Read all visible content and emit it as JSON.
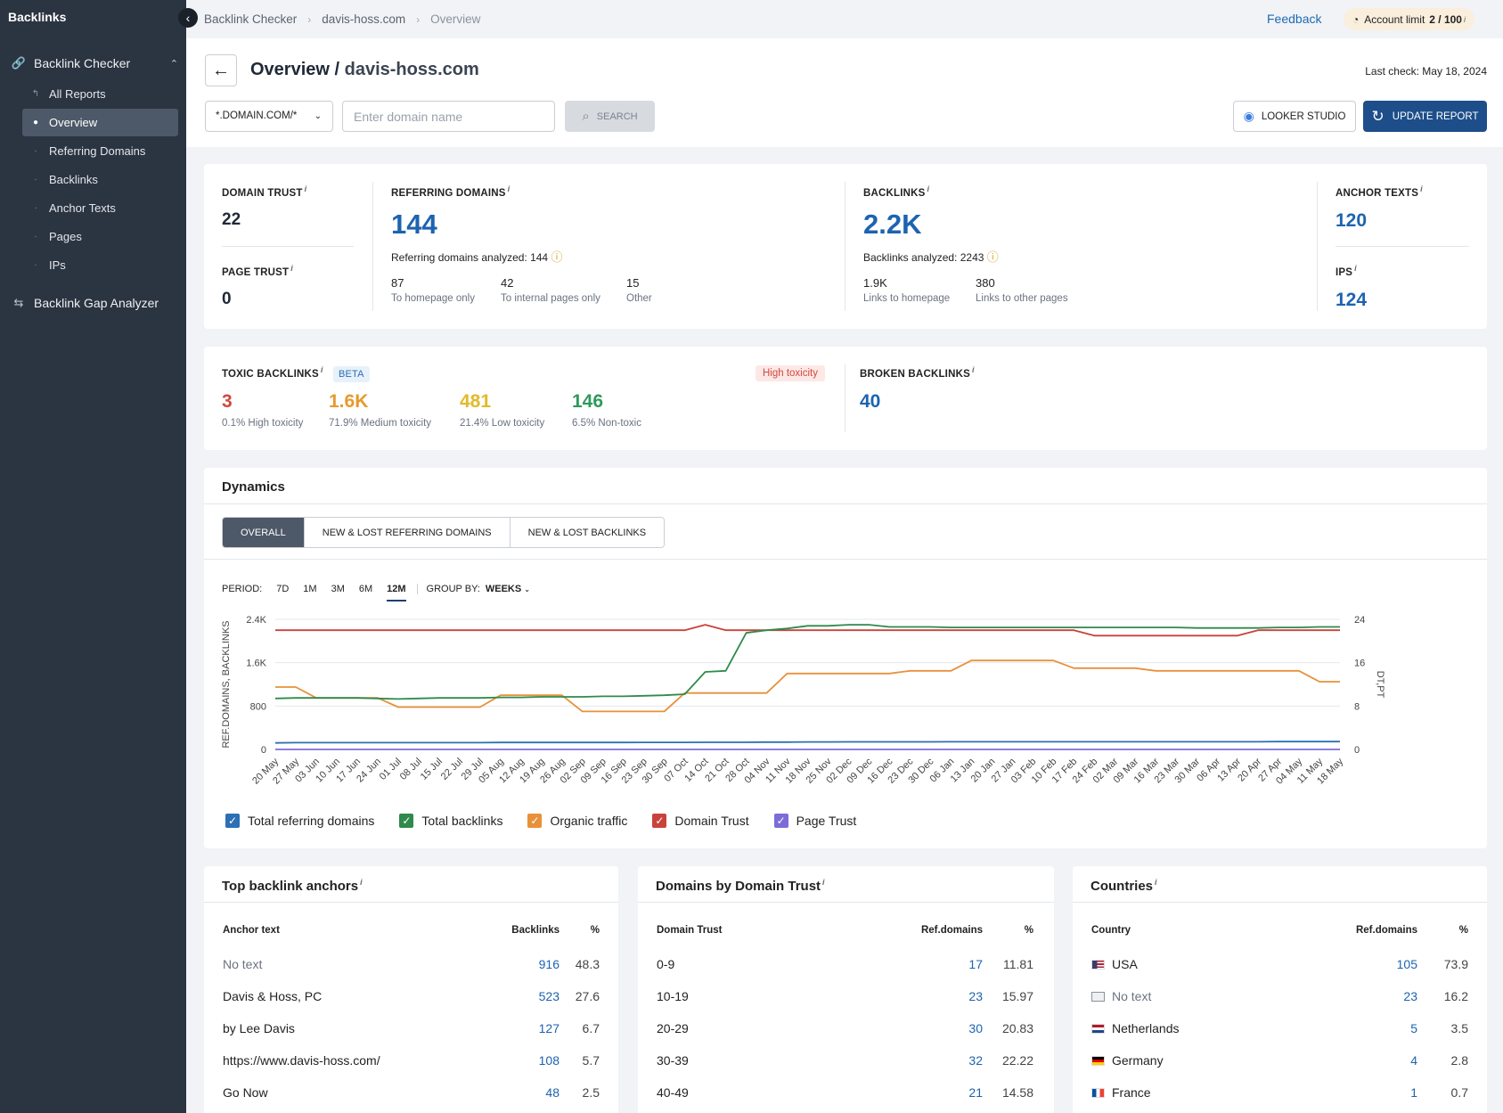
{
  "sidebar": {
    "title": "Backlinks",
    "sections": [
      {
        "label": "Backlink Checker",
        "icon": "link-icon"
      },
      {
        "label": "Backlink Gap Analyzer",
        "icon": "gap-icon"
      }
    ],
    "items": [
      {
        "label": "All Reports"
      },
      {
        "label": "Overview"
      },
      {
        "label": "Referring Domains"
      },
      {
        "label": "Backlinks"
      },
      {
        "label": "Anchor Texts"
      },
      {
        "label": "Pages"
      },
      {
        "label": "IPs"
      }
    ]
  },
  "breadcrumb": [
    "Backlink Checker",
    "davis-hoss.com",
    "Overview"
  ],
  "topbar": {
    "feedback": "Feedback",
    "account_limit_label": "Account limit",
    "account_limit_value": "2 / 100"
  },
  "header": {
    "title": "Overview /",
    "domain": "davis-hoss.com",
    "last_check": "Last check: May 18, 2024",
    "mask": "*.DOMAIN.COM/*",
    "domain_placeholder": "Enter domain name",
    "search_label": "SEARCH",
    "looker_label": "LOOKER STUDIO",
    "update_label": "UPDATE REPORT"
  },
  "metrics": {
    "domain_trust": {
      "label": "DOMAIN TRUST",
      "value": "22"
    },
    "page_trust": {
      "label": "PAGE TRUST",
      "value": "0"
    },
    "referring_domains": {
      "label": "REFERRING DOMAINS",
      "value": "144",
      "analyzed": "Referring domains analyzed: 144",
      "subs": [
        {
          "value": "87",
          "label": "To homepage only"
        },
        {
          "value": "42",
          "label": "To internal pages only"
        },
        {
          "value": "15",
          "label": "Other"
        }
      ]
    },
    "backlinks": {
      "label": "BACKLINKS",
      "value": "2.2K",
      "analyzed": "Backlinks analyzed: 2243",
      "subs": [
        {
          "value": "1.9K",
          "label": "Links to homepage"
        },
        {
          "value": "380",
          "label": "Links to other pages"
        }
      ]
    },
    "anchor_texts": {
      "label": "ANCHOR TEXTS",
      "value": "120"
    },
    "ips": {
      "label": "IPS",
      "value": "124"
    }
  },
  "toxic": {
    "label": "TOXIC BACKLINKS",
    "badge": "BETA",
    "status": "High toxicity",
    "items": [
      {
        "value": "3",
        "label": "0.1% High toxicity",
        "color": "#d0483d"
      },
      {
        "value": "1.6K",
        "label": "71.9% Medium toxicity",
        "color": "#e59a2e"
      },
      {
        "value": "481",
        "label": "21.4% Low toxicity",
        "color": "#e3b92a"
      },
      {
        "value": "146",
        "label": "6.5% Non-toxic",
        "color": "#2f9a5c"
      }
    ]
  },
  "broken": {
    "label": "BROKEN BACKLINKS",
    "value": "40"
  },
  "dynamics": {
    "title": "Dynamics",
    "tabs": [
      "OVERALL",
      "NEW & LOST REFERRING DOMAINS",
      "NEW & LOST BACKLINKS"
    ],
    "period_label": "PERIOD:",
    "periods": [
      "7D",
      "1M",
      "3M",
      "6M",
      "12M"
    ],
    "group_label": "GROUP BY:",
    "group_value": "WEEKS"
  },
  "chart_data": {
    "type": "line",
    "ylabel": "REF.DOMAINS, BACKLINKS",
    "y2label": "DT,PT",
    "ylim": [
      0,
      2400
    ],
    "y2lim": [
      0,
      24
    ],
    "yticks": [
      "0",
      "800",
      "1.6K",
      "2.4K"
    ],
    "y2ticks": [
      "0",
      "8",
      "16",
      "24"
    ],
    "x": [
      "20 May",
      "27 May",
      "03 Jun",
      "10 Jun",
      "17 Jun",
      "24 Jun",
      "01 Jul",
      "08 Jul",
      "15 Jul",
      "22 Jul",
      "29 Jul",
      "05 Aug",
      "12 Aug",
      "19 Aug",
      "26 Aug",
      "02 Sep",
      "09 Sep",
      "16 Sep",
      "23 Sep",
      "30 Sep",
      "07 Oct",
      "14 Oct",
      "21 Oct",
      "28 Oct",
      "04 Nov",
      "11 Nov",
      "18 Nov",
      "25 Nov",
      "02 Dec",
      "09 Dec",
      "16 Dec",
      "23 Dec",
      "30 Dec",
      "06 Jan",
      "13 Jan",
      "20 Jan",
      "27 Jan",
      "03 Feb",
      "10 Feb",
      "17 Feb",
      "24 Feb",
      "02 Mar",
      "09 Mar",
      "16 Mar",
      "23 Mar",
      "30 Mar",
      "06 Apr",
      "13 Apr",
      "20 Apr",
      "27 Apr",
      "04 May",
      "11 May",
      "18 May"
    ],
    "series": [
      {
        "name": "Total referring domains",
        "color": "#2c6fb5",
        "axis": "left",
        "values": [
          120,
          125,
          125,
          125,
          125,
          125,
          125,
          125,
          125,
          125,
          125,
          128,
          128,
          128,
          128,
          128,
          128,
          128,
          130,
          130,
          130,
          132,
          132,
          132,
          135,
          135,
          138,
          138,
          140,
          140,
          140,
          140,
          140,
          142,
          142,
          142,
          142,
          142,
          142,
          142,
          142,
          142,
          142,
          142,
          142,
          142,
          142,
          142,
          142,
          144,
          144,
          144,
          144
        ]
      },
      {
        "name": "Total backlinks",
        "color": "#2f8a4c",
        "axis": "left",
        "values": [
          940,
          950,
          950,
          950,
          950,
          940,
          930,
          940,
          950,
          950,
          950,
          960,
          960,
          970,
          970,
          970,
          980,
          980,
          990,
          1000,
          1020,
          1430,
          1450,
          2150,
          2200,
          2230,
          2280,
          2280,
          2300,
          2300,
          2260,
          2260,
          2260,
          2250,
          2250,
          2250,
          2250,
          2250,
          2250,
          2250,
          2250,
          2250,
          2250,
          2250,
          2250,
          2240,
          2240,
          2240,
          2240,
          2250,
          2250,
          2260,
          2260
        ]
      },
      {
        "name": "Organic traffic",
        "color": "#e8913a",
        "axis": "left",
        "values": [
          1150,
          1150,
          950,
          950,
          950,
          950,
          780,
          780,
          780,
          780,
          780,
          1000,
          1000,
          1000,
          1000,
          700,
          700,
          700,
          700,
          700,
          1040,
          1040,
          1040,
          1040,
          1040,
          1400,
          1400,
          1400,
          1400,
          1400,
          1400,
          1450,
          1450,
          1450,
          1640,
          1640,
          1640,
          1640,
          1640,
          1500,
          1500,
          1500,
          1500,
          1450,
          1450,
          1450,
          1450,
          1450,
          1450,
          1450,
          1450,
          1250,
          1250
        ]
      },
      {
        "name": "Domain Trust",
        "color": "#c8423b",
        "axis": "right",
        "values": [
          22,
          22,
          22,
          22,
          22,
          22,
          22,
          22,
          22,
          22,
          22,
          22,
          22,
          22,
          22,
          22,
          22,
          22,
          22,
          22,
          22,
          23,
          22,
          22,
          22,
          22,
          22,
          22,
          22,
          22,
          22,
          22,
          22,
          22,
          22,
          22,
          22,
          22,
          22,
          22,
          21,
          21,
          21,
          21,
          21,
          21,
          21,
          21,
          22,
          22,
          22,
          22,
          22
        ]
      },
      {
        "name": "Page Trust",
        "color": "#7b6cd9",
        "axis": "right",
        "values": [
          0,
          0,
          0,
          0,
          0,
          0,
          0,
          0,
          0,
          0,
          0,
          0,
          0,
          0,
          0,
          0,
          0,
          0,
          0,
          0,
          0,
          0,
          0,
          0,
          0,
          0,
          0,
          0,
          0,
          0,
          0,
          0,
          0,
          0,
          0,
          0,
          0,
          0,
          0,
          0,
          0,
          0,
          0,
          0,
          0,
          0,
          0,
          0,
          0,
          0,
          0,
          0,
          0
        ]
      }
    ],
    "legend": [
      {
        "label": "Total referring domains",
        "color": "#2c6fb5"
      },
      {
        "label": "Total backlinks",
        "color": "#2f8a4c"
      },
      {
        "label": "Organic traffic",
        "color": "#e8913a"
      },
      {
        "label": "Domain Trust",
        "color": "#c8423b"
      },
      {
        "label": "Page Trust",
        "color": "#7b6cd9"
      }
    ]
  },
  "anchors": {
    "title": "Top backlink anchors",
    "headers": [
      "Anchor text",
      "Backlinks",
      "%"
    ],
    "rows": [
      {
        "text": "No text",
        "backlinks": "916",
        "pct": "48.3"
      },
      {
        "text": "Davis & Hoss, PC",
        "backlinks": "523",
        "pct": "27.6"
      },
      {
        "text": "by Lee Davis",
        "backlinks": "127",
        "pct": "6.7"
      },
      {
        "text": "https://www.davis-hoss.com/",
        "backlinks": "108",
        "pct": "5.7"
      },
      {
        "text": "Go Now",
        "backlinks": "48",
        "pct": "2.5"
      }
    ]
  },
  "domains_dt": {
    "title": "Domains by Domain Trust",
    "headers": [
      "Domain Trust",
      "Ref.domains",
      "%"
    ],
    "rows": [
      {
        "range": "0-9",
        "count": "17",
        "pct": "11.81"
      },
      {
        "range": "10-19",
        "count": "23",
        "pct": "15.97"
      },
      {
        "range": "20-29",
        "count": "30",
        "pct": "20.83"
      },
      {
        "range": "30-39",
        "count": "32",
        "pct": "22.22"
      },
      {
        "range": "40-49",
        "count": "21",
        "pct": "14.58"
      }
    ]
  },
  "countries": {
    "title": "Countries",
    "headers": [
      "Country",
      "Ref.domains",
      "%"
    ],
    "rows": [
      {
        "name": "USA",
        "count": "105",
        "pct": "73.9",
        "flag": "us-flag-icon"
      },
      {
        "name": "No text",
        "count": "23",
        "pct": "16.2",
        "flag": "globe-icon"
      },
      {
        "name": "Netherlands",
        "count": "5",
        "pct": "3.5",
        "flag": "nl-flag-icon"
      },
      {
        "name": "Germany",
        "count": "4",
        "pct": "2.8",
        "flag": "de-flag-icon"
      },
      {
        "name": "France",
        "count": "1",
        "pct": "0.7",
        "flag": "fr-flag-icon"
      }
    ]
  }
}
